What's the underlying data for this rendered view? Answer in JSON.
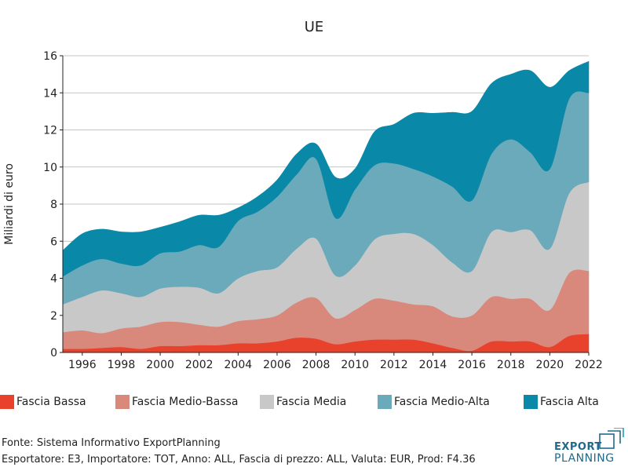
{
  "chart_data": {
    "type": "area",
    "stacked": true,
    "title": "UE",
    "ylabel": "Miliardi di euro",
    "xlabel": "",
    "xlim": [
      1995,
      2022
    ],
    "ylim": [
      0,
      16
    ],
    "yticks": [
      0,
      2,
      4,
      6,
      8,
      10,
      12,
      14,
      16
    ],
    "xticks": [
      1996,
      1998,
      2000,
      2002,
      2004,
      2006,
      2008,
      2010,
      2012,
      2014,
      2016,
      2018,
      2020,
      2022
    ],
    "grid": "horizontal",
    "legend_position": "bottom",
    "x": [
      1995,
      1996,
      1997,
      1998,
      1999,
      2000,
      2001,
      2002,
      2003,
      2004,
      2005,
      2006,
      2007,
      2008,
      2009,
      2010,
      2011,
      2012,
      2013,
      2014,
      2015,
      2016,
      2017,
      2018,
      2019,
      2020,
      2021,
      2022
    ],
    "series": [
      {
        "name": "Fascia Bassa",
        "color": "#e8412c",
        "values": [
          0.2,
          0.2,
          0.25,
          0.3,
          0.2,
          0.35,
          0.35,
          0.4,
          0.4,
          0.5,
          0.5,
          0.6,
          0.8,
          0.75,
          0.45,
          0.6,
          0.7,
          0.7,
          0.7,
          0.5,
          0.25,
          0.1,
          0.6,
          0.6,
          0.6,
          0.3,
          0.9,
          1.0
        ]
      },
      {
        "name": "Fascia Medio-Bassa",
        "color": "#d9887c",
        "values": [
          0.9,
          1.0,
          0.8,
          1.0,
          1.2,
          1.3,
          1.3,
          1.1,
          1.0,
          1.2,
          1.3,
          1.4,
          1.9,
          2.2,
          1.4,
          1.7,
          2.2,
          2.1,
          1.9,
          2.0,
          1.7,
          1.9,
          2.4,
          2.3,
          2.3,
          2.0,
          3.4,
          3.4
        ]
      },
      {
        "name": "Fascia Media",
        "color": "#c8c8c8",
        "values": [
          1.5,
          1.8,
          2.3,
          1.9,
          1.6,
          1.8,
          1.9,
          2.0,
          1.8,
          2.3,
          2.6,
          2.6,
          2.9,
          3.2,
          2.3,
          2.4,
          3.2,
          3.6,
          3.8,
          3.3,
          2.9,
          2.4,
          3.5,
          3.6,
          3.7,
          3.3,
          4.3,
          4.8
        ]
      },
      {
        "name": "Fascia Medio-Alta",
        "color": "#6aaabb",
        "values": [
          1.5,
          1.7,
          1.7,
          1.6,
          1.7,
          1.9,
          1.9,
          2.3,
          2.5,
          3.1,
          3.2,
          3.8,
          4.0,
          4.3,
          3.1,
          4.1,
          4.0,
          3.8,
          3.5,
          3.7,
          4.1,
          3.8,
          4.2,
          5.0,
          4.2,
          4.3,
          5.1,
          4.8
        ]
      },
      {
        "name": "Fascia Alta",
        "color": "#0a88a8",
        "values": [
          1.4,
          1.7,
          1.6,
          1.7,
          1.8,
          1.4,
          1.6,
          1.6,
          1.7,
          0.7,
          0.8,
          0.9,
          1.1,
          0.8,
          2.2,
          1.1,
          1.8,
          2.1,
          3.0,
          3.4,
          4.0,
          4.8,
          3.8,
          3.5,
          4.4,
          4.4,
          1.5,
          1.7
        ]
      }
    ]
  },
  "source": {
    "line1": "Fonte: Sistema Informativo ExportPlanning",
    "line2": "Esportatore: E3, Importatore: TOT, Anno: ALL, Fascia di prezzo: ALL, Valuta: EUR, Prod: F4.36"
  },
  "logo": {
    "line1": "EXPORT",
    "line2": "PLANNING",
    "color": "#1f6a8a"
  }
}
